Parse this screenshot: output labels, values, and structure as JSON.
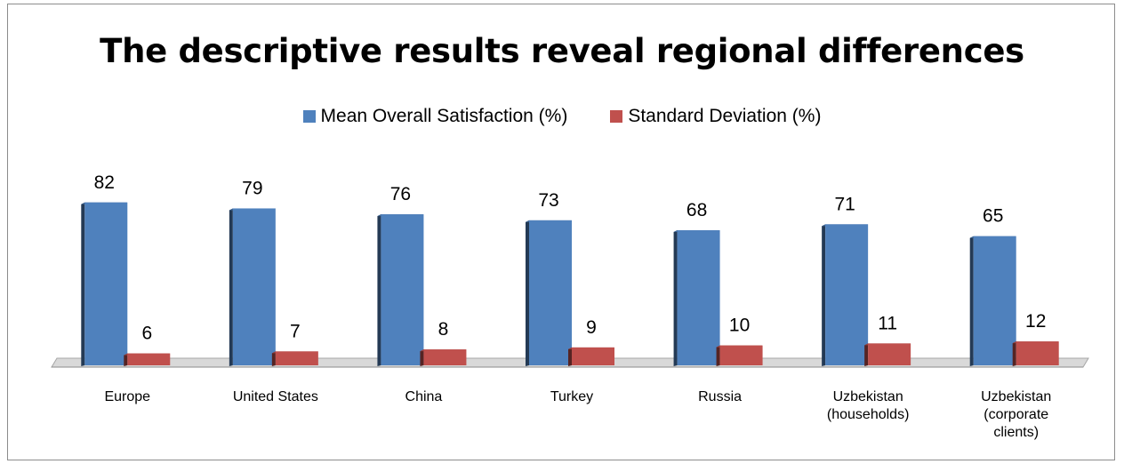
{
  "chart_data": {
    "type": "bar",
    "title": "The descriptive results reveal regional differences",
    "categories": [
      [
        "Europe"
      ],
      [
        "United States"
      ],
      [
        "China"
      ],
      [
        "Turkey"
      ],
      [
        "Russia"
      ],
      [
        "Uzbekistan",
        "(households)"
      ],
      [
        "Uzbekistan",
        "(corporate",
        "clients)"
      ]
    ],
    "series": [
      {
        "name": "Mean Overall Satisfaction (%)",
        "color": "#4f81bd",
        "values": [
          82,
          79,
          76,
          73,
          68,
          71,
          65
        ]
      },
      {
        "name": "Standard Deviation (%)",
        "color": "#c0504d",
        "values": [
          6,
          7,
          8,
          9,
          10,
          11,
          12
        ]
      }
    ],
    "ylim": [
      0,
      100
    ],
    "grid": false,
    "legend_position": "top",
    "style": "3d-bar"
  }
}
